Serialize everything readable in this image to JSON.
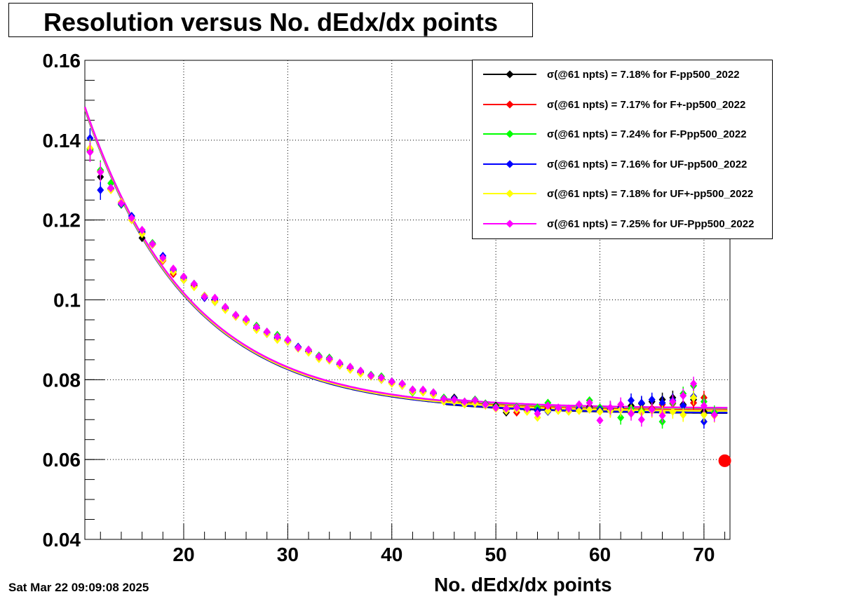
{
  "title": "Resolution versus No. dEdx/dx points",
  "timestamp": "Sat Mar 22 09:09:08 2025",
  "chart_data": {
    "type": "scatter",
    "title": "Resolution versus No. dEdx/dx points",
    "xlabel": "No. dEdx/dx points",
    "ylabel": "",
    "xlim": [
      10.5,
      72.5
    ],
    "ylim": [
      0.04,
      0.16
    ],
    "xticks": [
      "20",
      "30",
      "40",
      "50",
      "60",
      "70"
    ],
    "yticks": [
      "0.04",
      "0.06",
      "0.08",
      "0.1",
      "0.12",
      "0.14",
      "0.16"
    ],
    "grid": true,
    "legend_position": "top-right",
    "fit_parameters": {
      "asymptote": 0.072,
      "amplitude": 0.148,
      "decay_scale": 10.0,
      "x0": 11
    },
    "extra_marker": {
      "x": 72,
      "y": 0.0597,
      "color": "#ff0000"
    },
    "series": [
      {
        "name": "F-pp500_2022",
        "label": "σ(@61 npts) =  7.18% for F-pp500_2022",
        "color": "#000000",
        "x": [
          11,
          12,
          13,
          14,
          15,
          16,
          17,
          18,
          19,
          20,
          21,
          22,
          23,
          24,
          25,
          26,
          27,
          28,
          29,
          30,
          31,
          32,
          33,
          34,
          35,
          36,
          37,
          38,
          39,
          40,
          41,
          42,
          43,
          44,
          45,
          46,
          47,
          48,
          49,
          50,
          51,
          52,
          53,
          54,
          55,
          56,
          57,
          58,
          59,
          60,
          61,
          62,
          63,
          64,
          65,
          66,
          67,
          68,
          69,
          70,
          71
        ],
        "y": [
          0.1378,
          0.1308,
          0.1278,
          0.1242,
          0.1205,
          0.1155,
          0.114,
          0.11,
          0.107,
          0.105,
          0.1035,
          0.101,
          0.0995,
          0.098,
          0.096,
          0.0945,
          0.093,
          0.0915,
          0.0905,
          0.0895,
          0.0882,
          0.087,
          0.0858,
          0.0852,
          0.0838,
          0.0828,
          0.0818,
          0.0808,
          0.0802,
          0.0795,
          0.0788,
          0.0775,
          0.0772,
          0.0765,
          0.0752,
          0.0755,
          0.0742,
          0.0745,
          0.074,
          0.0735,
          0.0718,
          0.0728,
          0.0722,
          0.0725,
          0.0728,
          0.0725,
          0.0722,
          0.0728,
          0.0732,
          0.0728,
          0.0725,
          0.073,
          0.0735,
          0.074,
          0.0745,
          0.075,
          0.0755,
          0.0738,
          0.075,
          0.072,
          0.0712
        ]
      },
      {
        "name": "F+-pp500_2022",
        "label": "σ(@61 npts) =  7.17% for F+-pp500_2022",
        "color": "#ff0000",
        "x": [
          11,
          12,
          13,
          14,
          15,
          16,
          17,
          18,
          19,
          20,
          21,
          22,
          23,
          24,
          25,
          26,
          27,
          28,
          29,
          30,
          31,
          32,
          33,
          34,
          35,
          36,
          37,
          38,
          39,
          40,
          41,
          42,
          43,
          44,
          45,
          46,
          47,
          48,
          49,
          50,
          51,
          52,
          53,
          54,
          55,
          56,
          57,
          58,
          59,
          60,
          61,
          62,
          63,
          64,
          65,
          66,
          67,
          68,
          69,
          70,
          71
        ],
        "y": [
          0.1372,
          0.1322,
          0.128,
          0.1245,
          0.12,
          0.1168,
          0.1138,
          0.1098,
          0.1065,
          0.1055,
          0.1038,
          0.1005,
          0.0998,
          0.0978,
          0.0958,
          0.0948,
          0.0928,
          0.0918,
          0.0902,
          0.0897,
          0.088,
          0.0872,
          0.0856,
          0.085,
          0.0838,
          0.083,
          0.0818,
          0.081,
          0.08,
          0.0792,
          0.0785,
          0.0772,
          0.077,
          0.0762,
          0.0748,
          0.0752,
          0.0742,
          0.0745,
          0.0738,
          0.0728,
          0.0725,
          0.0718,
          0.0725,
          0.0728,
          0.073,
          0.0725,
          0.0722,
          0.0728,
          0.073,
          0.0725,
          0.0725,
          0.0732,
          0.0728,
          0.0725,
          0.0728,
          0.0738,
          0.074,
          0.0735,
          0.0742,
          0.0755,
          0.0712
        ]
      },
      {
        "name": "F-Ppp500_2022",
        "label": "σ(@61 npts) =  7.24% for F-Ppp500_2022",
        "color": "#00ff00",
        "x": [
          11,
          12,
          13,
          14,
          15,
          16,
          17,
          18,
          19,
          20,
          21,
          22,
          23,
          24,
          25,
          26,
          27,
          28,
          29,
          30,
          31,
          32,
          33,
          34,
          35,
          36,
          37,
          38,
          39,
          40,
          41,
          42,
          43,
          44,
          45,
          46,
          47,
          48,
          49,
          50,
          51,
          52,
          53,
          54,
          55,
          56,
          57,
          58,
          59,
          60,
          61,
          62,
          63,
          64,
          65,
          66,
          67,
          68,
          69,
          70,
          71
        ],
        "y": [
          0.1375,
          0.1325,
          0.1292,
          0.1238,
          0.121,
          0.1172,
          0.1142,
          0.1105,
          0.1072,
          0.1058,
          0.104,
          0.101,
          0.1002,
          0.0982,
          0.0962,
          0.095,
          0.0935,
          0.092,
          0.0912,
          0.0898,
          0.0882,
          0.0875,
          0.086,
          0.0855,
          0.084,
          0.0832,
          0.0822,
          0.0812,
          0.0808,
          0.0795,
          0.079,
          0.0768,
          0.077,
          0.0768,
          0.0755,
          0.0752,
          0.0745,
          0.075,
          0.074,
          0.0732,
          0.0728,
          0.0732,
          0.0728,
          0.073,
          0.0742,
          0.0728,
          0.0725,
          0.0735,
          0.0748,
          0.073,
          0.0728,
          0.0705,
          0.0728,
          0.0722,
          0.0725,
          0.0695,
          0.0742,
          0.0765,
          0.0785,
          0.0745,
          0.0718
        ]
      },
      {
        "name": "UF-pp500_2022",
        "label": "σ(@61 npts) =  7.16% for UF-pp500_2022",
        "color": "#0000ff",
        "x": [
          11,
          12,
          13,
          14,
          15,
          16,
          17,
          18,
          19,
          20,
          21,
          22,
          23,
          24,
          25,
          26,
          27,
          28,
          29,
          30,
          31,
          32,
          33,
          34,
          35,
          36,
          37,
          38,
          39,
          40,
          41,
          42,
          43,
          44,
          45,
          46,
          47,
          48,
          49,
          50,
          51,
          52,
          53,
          54,
          55,
          56,
          57,
          58,
          59,
          60,
          61,
          62,
          63,
          64,
          65,
          66,
          67,
          68,
          69,
          70,
          71
        ],
        "y": [
          0.1405,
          0.1275,
          0.128,
          0.124,
          0.121,
          0.117,
          0.114,
          0.111,
          0.1075,
          0.1055,
          0.104,
          0.1005,
          0.1002,
          0.0978,
          0.096,
          0.095,
          0.093,
          0.0918,
          0.0905,
          0.0897,
          0.0882,
          0.087,
          0.0858,
          0.0852,
          0.0838,
          0.0828,
          0.082,
          0.081,
          0.08,
          0.0795,
          0.0788,
          0.0772,
          0.0772,
          0.0765,
          0.0752,
          0.0752,
          0.0742,
          0.0748,
          0.0738,
          0.073,
          0.0725,
          0.0728,
          0.0725,
          0.0722,
          0.072,
          0.0728,
          0.0722,
          0.0728,
          0.0728,
          0.0725,
          0.0728,
          0.073,
          0.0748,
          0.0742,
          0.075,
          0.0742,
          0.0748,
          0.0735,
          0.0758,
          0.0695,
          0.0712
        ]
      },
      {
        "name": "UF+-pp500_2022",
        "label": "σ(@61 npts) =  7.18% for UF+-pp500_2022",
        "color": "#ffff00",
        "x": [
          11,
          12,
          13,
          14,
          15,
          16,
          17,
          18,
          19,
          20,
          21,
          22,
          23,
          24,
          25,
          26,
          27,
          28,
          29,
          30,
          31,
          32,
          33,
          34,
          35,
          36,
          37,
          38,
          39,
          40,
          41,
          42,
          43,
          44,
          45,
          46,
          47,
          48,
          49,
          50,
          51,
          52,
          53,
          54,
          55,
          56,
          57,
          58,
          59,
          60,
          61,
          62,
          63,
          64,
          65,
          66,
          67,
          68,
          69,
          70,
          71
        ],
        "y": [
          0.138,
          0.132,
          0.1275,
          0.1245,
          0.12,
          0.1165,
          0.1138,
          0.11,
          0.107,
          0.105,
          0.1032,
          0.101,
          0.0995,
          0.0975,
          0.0958,
          0.0945,
          0.0925,
          0.0915,
          0.09,
          0.0895,
          0.0878,
          0.0868,
          0.0852,
          0.0848,
          0.0835,
          0.0825,
          0.0815,
          0.0808,
          0.08,
          0.079,
          0.0785,
          0.077,
          0.0768,
          0.0762,
          0.0745,
          0.0745,
          0.0738,
          0.074,
          0.0735,
          0.0728,
          0.0722,
          0.0725,
          0.072,
          0.0705,
          0.0722,
          0.0722,
          0.072,
          0.0722,
          0.0725,
          0.072,
          0.0722,
          0.0725,
          0.072,
          0.0718,
          0.0722,
          0.0718,
          0.072,
          0.0712,
          0.0755,
          0.0712,
          0.071
        ]
      },
      {
        "name": "UF-Ppp500_2022",
        "label": "σ(@61 npts) =  7.25% for UF-Ppp500_2022",
        "color": "#ff00ff",
        "x": [
          11,
          12,
          13,
          14,
          15,
          16,
          17,
          18,
          19,
          20,
          21,
          22,
          23,
          24,
          25,
          26,
          27,
          28,
          29,
          30,
          31,
          32,
          33,
          34,
          35,
          36,
          37,
          38,
          39,
          40,
          41,
          42,
          43,
          44,
          45,
          46,
          47,
          48,
          49,
          50,
          51,
          52,
          53,
          54,
          55,
          56,
          57,
          58,
          59,
          60,
          61,
          62,
          63,
          64,
          65,
          66,
          67,
          68,
          69,
          70,
          71
        ],
        "y": [
          0.137,
          0.132,
          0.128,
          0.1242,
          0.1205,
          0.1175,
          0.114,
          0.1105,
          0.1078,
          0.1058,
          0.104,
          0.1008,
          0.1005,
          0.0982,
          0.0962,
          0.0952,
          0.0932,
          0.092,
          0.0908,
          0.09,
          0.088,
          0.0875,
          0.0858,
          0.0852,
          0.0842,
          0.0832,
          0.0822,
          0.081,
          0.0805,
          0.0795,
          0.079,
          0.0775,
          0.0775,
          0.0768,
          0.0752,
          0.075,
          0.0745,
          0.0748,
          0.0738,
          0.073,
          0.0728,
          0.073,
          0.0728,
          0.0715,
          0.0735,
          0.073,
          0.0728,
          0.0738,
          0.0742,
          0.0698,
          0.073,
          0.0738,
          0.0715,
          0.07,
          0.0725,
          0.071,
          0.0745,
          0.076,
          0.079,
          0.0735,
          0.0712
        ]
      }
    ]
  }
}
